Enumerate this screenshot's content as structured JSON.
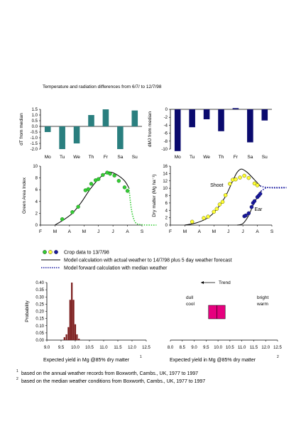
{
  "header": {
    "title": "Temperature and radiation differences from 6/7/ to 12/7/98"
  },
  "colors": {
    "teal": "#2a7f7f",
    "navy": "#0a0a6e",
    "green": "#33cc33",
    "yellow": "#ffff33",
    "blue": "#1a1aa0",
    "bar_red": "#7a1a1a",
    "pink": "#e6007e"
  },
  "legend": {
    "crop_data": "Crop data to 13/7/98",
    "model_actual": "Model calculation with actual weather to 14/7/98 plus 5 day weather forecast",
    "model_median": "Model forward calculation with median weather"
  },
  "footnotes": {
    "n1": "1",
    "n2": "2",
    "f1": "based on the annual weather records from Boxworth, Cambs., UK,  1977 to 1997",
    "f2": "based on the median weather conditions from Boxworth, Cambs., UK, 1977 to 1997"
  },
  "chart_data": [
    {
      "type": "bar",
      "ylabel": "dT from median",
      "categories": [
        "Mo",
        "Tu",
        "We",
        "Th",
        "Fr",
        "Sa",
        "Su"
      ],
      "values": [
        -0.5,
        -2.0,
        -1.5,
        1.0,
        1.5,
        -2.0,
        1.4
      ],
      "ylim": [
        -2.0,
        1.5
      ],
      "yticks": [
        "1.5",
        "1.0",
        "0.5",
        "0.0",
        "-0.5",
        "-1.0",
        "-1.5",
        "-2.0"
      ]
    },
    {
      "type": "bar",
      "ylabel": "dMJ from median",
      "categories": [
        "Mo",
        "Tu",
        "We",
        "Th",
        "Fr",
        "Sa",
        "Su"
      ],
      "values": [
        -10.5,
        -4.5,
        -2.5,
        -5.5,
        0.3,
        -8.3,
        -2.8
      ],
      "ylim": [
        -10,
        0
      ],
      "yticks": [
        "0",
        "-2",
        "-4",
        "-6",
        "-8",
        "-10"
      ]
    },
    {
      "type": "line",
      "ylabel": "Green Area Index",
      "months": [
        "F",
        "M",
        "A",
        "M",
        "J",
        "J",
        "A",
        "S"
      ],
      "yticks": [
        "10",
        "8",
        "6",
        "4",
        "2",
        "0"
      ],
      "ylim": [
        0,
        10
      ],
      "observed": [
        [
          1.5,
          1.0
        ],
        [
          2.2,
          2.2
        ],
        [
          2.6,
          3.1
        ],
        [
          3.1,
          5.9
        ],
        [
          3.3,
          6.1
        ],
        [
          3.5,
          7.0
        ],
        [
          3.8,
          7.6
        ],
        [
          4.0,
          7.8
        ],
        [
          4.3,
          8.5
        ],
        [
          4.6,
          8.9
        ],
        [
          4.8,
          8.7
        ],
        [
          5.1,
          8.4
        ],
        [
          5.4,
          7.5
        ],
        [
          5.8,
          6.4
        ],
        [
          6.0,
          5.8
        ]
      ],
      "model_actual": [
        [
          1.0,
          0.0
        ],
        [
          1.6,
          0.9
        ],
        [
          2.2,
          2.0
        ],
        [
          2.8,
          3.8
        ],
        [
          3.4,
          6.0
        ],
        [
          4.0,
          7.8
        ],
        [
          4.5,
          8.8
        ],
        [
          4.8,
          9.0
        ],
        [
          5.3,
          8.5
        ],
        [
          5.8,
          7.5
        ],
        [
          6.1,
          6.3
        ]
      ],
      "model_median": [
        [
          6.1,
          6.3
        ],
        [
          6.25,
          3.0
        ],
        [
          6.4,
          1.3
        ],
        [
          6.6,
          0.3
        ],
        [
          7.0,
          0.05
        ],
        [
          7.6,
          0.0
        ],
        [
          8.0,
          0.0
        ]
      ]
    },
    {
      "type": "line",
      "ylabel": "Dry matter (Mg ha⁻¹)",
      "months": [
        "F",
        "M",
        "A",
        "M",
        "J",
        "J",
        "A",
        "S"
      ],
      "yticks": [
        "16",
        "14",
        "12",
        "10",
        "8",
        "6",
        "4",
        "2",
        "0"
      ],
      "ylim": [
        0,
        16
      ],
      "series_labels": {
        "shoot": "Shoot",
        "ear": "Ear"
      },
      "shoot_observed": [
        [
          1.5,
          0.9
        ],
        [
          2.3,
          1.9
        ],
        [
          2.6,
          2.3
        ],
        [
          3.0,
          3.6
        ],
        [
          3.2,
          4.4
        ],
        [
          3.4,
          5.6
        ],
        [
          3.6,
          6.3
        ],
        [
          3.8,
          8.1
        ],
        [
          4.1,
          11.2
        ],
        [
          4.3,
          12.3
        ],
        [
          4.5,
          12.4
        ],
        [
          4.8,
          12.9
        ],
        [
          5.1,
          13.4
        ],
        [
          5.4,
          12.8
        ],
        [
          5.8,
          11.3
        ],
        [
          6.0,
          10.8
        ]
      ],
      "shoot_model": [
        [
          1.0,
          0.0
        ],
        [
          1.8,
          0.6
        ],
        [
          2.6,
          2.0
        ],
        [
          3.2,
          4.3
        ],
        [
          3.8,
          7.8
        ],
        [
          4.3,
          12.0
        ],
        [
          4.6,
          14.3
        ],
        [
          4.9,
          15.2
        ],
        [
          5.3,
          14.3
        ],
        [
          5.8,
          12.3
        ],
        [
          6.2,
          10.6
        ]
      ],
      "shoot_median": [
        [
          6.2,
          10.6
        ],
        [
          6.5,
          10.3
        ],
        [
          7.0,
          10.1
        ],
        [
          8.0,
          10.1
        ]
      ],
      "ear_observed": [
        [
          5.1,
          2.4
        ],
        [
          5.2,
          2.6
        ],
        [
          5.4,
          3.2
        ],
        [
          5.6,
          4.9
        ],
        [
          5.7,
          6.0
        ],
        [
          5.8,
          6.5
        ],
        [
          6.0,
          7.6
        ],
        [
          6.1,
          8.0
        ],
        [
          6.2,
          8.5
        ]
      ],
      "ear_model": [
        [
          4.6,
          0.0
        ],
        [
          5.0,
          0.4
        ],
        [
          5.4,
          2.6
        ],
        [
          5.7,
          5.4
        ],
        [
          6.0,
          7.6
        ],
        [
          6.25,
          9.2
        ]
      ],
      "ear_median": [
        [
          6.25,
          9.2
        ],
        [
          6.6,
          10.1
        ],
        [
          7.0,
          10.2
        ],
        [
          8.0,
          10.2
        ]
      ]
    },
    {
      "type": "bar",
      "ylabel": "Probability",
      "xlabel": "Expected yield in Mg @85% dry matter",
      "xlabel_sup": "1",
      "xticks": [
        "9.0",
        "9.5",
        "10.0",
        "10.5",
        "11.0",
        "11.5",
        "12.0",
        "12.5"
      ],
      "xlim": [
        9.0,
        12.5
      ],
      "yticks": [
        "0.40",
        "0.35",
        "0.30",
        "0.25",
        "0.20",
        "0.15",
        "0.10",
        "0.05",
        "0.00"
      ],
      "ylim": [
        0,
        0.4
      ],
      "bins": [
        [
          9.62,
          0.02
        ],
        [
          9.69,
          0.04
        ],
        [
          9.76,
          0.09
        ],
        [
          9.82,
          0.28
        ],
        [
          9.88,
          0.4
        ],
        [
          9.94,
          0.28
        ],
        [
          10.0,
          0.11
        ],
        [
          10.06,
          0.04
        ],
        [
          10.13,
          0.01
        ]
      ]
    },
    {
      "type": "range",
      "xlabel": "Expected yield in Mg @85% dry matter",
      "xlabel_sup": "2",
      "xticks": [
        "8.0",
        "8.5",
        "9.0",
        "9.5",
        "10.0",
        "10.5",
        "11.0",
        "11.5",
        "12.0",
        "12.5"
      ],
      "xlim": [
        8.0,
        12.5
      ],
      "trend_label": "Trend",
      "left_label": [
        "dull",
        "cool"
      ],
      "right_label": [
        "bright",
        "warm"
      ],
      "box": [
        9.6,
        10.3
      ],
      "box_mid": 9.95
    }
  ]
}
